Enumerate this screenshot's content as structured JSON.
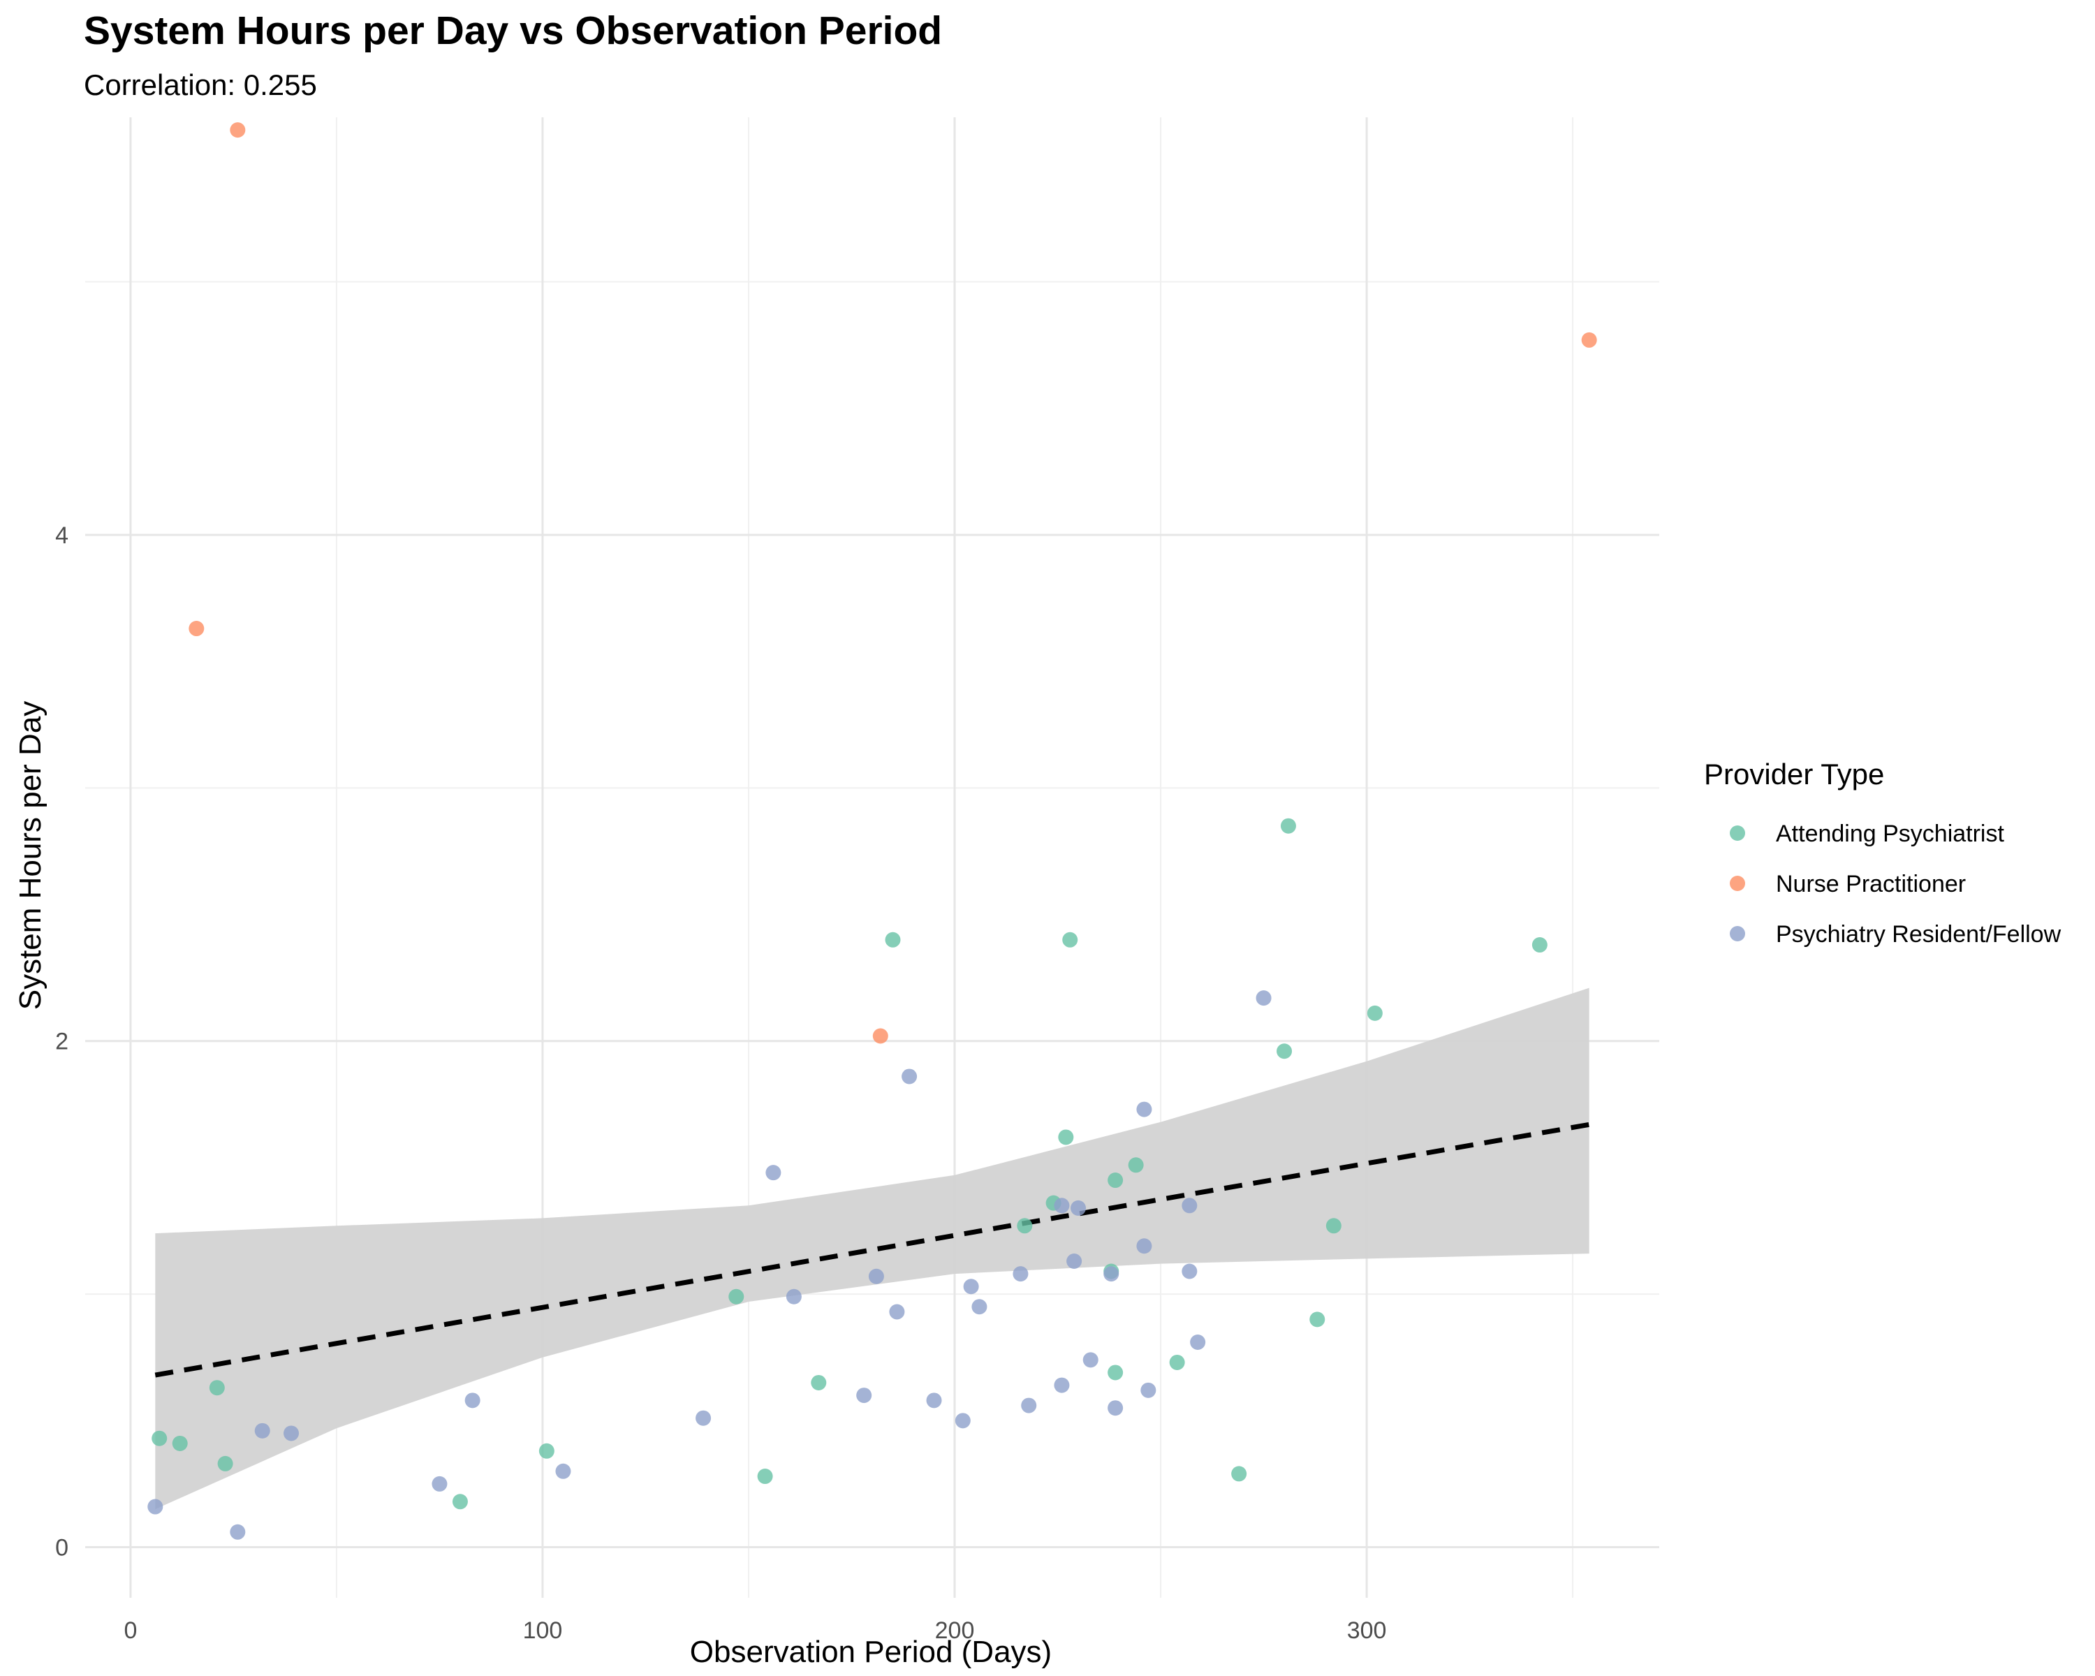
{
  "chart_data": {
    "type": "scatter",
    "title": "System Hours per Day vs Observation Period",
    "subtitle": "Correlation: 0.255",
    "xlabel": "Observation Period (Days)",
    "ylabel": "System Hours per Day",
    "xlim": [
      -11,
      371
    ],
    "ylim": [
      -0.2,
      5.65
    ],
    "x_ticks": [
      0,
      100,
      200,
      300
    ],
    "y_ticks": [
      0,
      2,
      4
    ],
    "x_minor_ticks": [
      50,
      150,
      250,
      350
    ],
    "y_minor_ticks": [
      1,
      3,
      5
    ],
    "grid": true,
    "legend": {
      "title": "Provider Type",
      "position": "right"
    },
    "series": [
      {
        "name": "Attending Psychiatrist",
        "color": "#66c2a5",
        "points": [
          {
            "x": 7,
            "y": 0.43
          },
          {
            "x": 12,
            "y": 0.41
          },
          {
            "x": 21,
            "y": 0.63
          },
          {
            "x": 23,
            "y": 0.33
          },
          {
            "x": 80,
            "y": 0.18
          },
          {
            "x": 101,
            "y": 0.38
          },
          {
            "x": 147,
            "y": 0.99
          },
          {
            "x": 154,
            "y": 0.28
          },
          {
            "x": 167,
            "y": 0.65
          },
          {
            "x": 185,
            "y": 2.4
          },
          {
            "x": 217,
            "y": 1.27
          },
          {
            "x": 224,
            "y": 1.36
          },
          {
            "x": 227,
            "y": 1.62
          },
          {
            "x": 228,
            "y": 2.4
          },
          {
            "x": 238,
            "y": 1.09
          },
          {
            "x": 239,
            "y": 1.45
          },
          {
            "x": 239,
            "y": 0.69
          },
          {
            "x": 244,
            "y": 1.51
          },
          {
            "x": 254,
            "y": 0.73
          },
          {
            "x": 269,
            "y": 0.29
          },
          {
            "x": 280,
            "y": 1.96
          },
          {
            "x": 281,
            "y": 2.85
          },
          {
            "x": 288,
            "y": 0.9
          },
          {
            "x": 292,
            "y": 1.27
          },
          {
            "x": 302,
            "y": 2.11
          },
          {
            "x": 342,
            "y": 2.38
          }
        ]
      },
      {
        "name": "Nurse Practitioner",
        "color": "#fc8d62",
        "points": [
          {
            "x": 16,
            "y": 3.63
          },
          {
            "x": 26,
            "y": 5.6
          },
          {
            "x": 182,
            "y": 2.02
          },
          {
            "x": 354,
            "y": 4.77
          }
        ]
      },
      {
        "name": "Psychiatry Resident/Fellow",
        "color": "#8da0cb",
        "points": [
          {
            "x": 6,
            "y": 0.16
          },
          {
            "x": 26,
            "y": 0.06
          },
          {
            "x": 32,
            "y": 0.46
          },
          {
            "x": 39,
            "y": 0.45
          },
          {
            "x": 75,
            "y": 0.25
          },
          {
            "x": 83,
            "y": 0.58
          },
          {
            "x": 105,
            "y": 0.3
          },
          {
            "x": 139,
            "y": 0.51
          },
          {
            "x": 156,
            "y": 1.48
          },
          {
            "x": 161,
            "y": 0.99
          },
          {
            "x": 178,
            "y": 0.6
          },
          {
            "x": 181,
            "y": 1.07
          },
          {
            "x": 186,
            "y": 0.93
          },
          {
            "x": 189,
            "y": 1.86
          },
          {
            "x": 195,
            "y": 0.58
          },
          {
            "x": 202,
            "y": 0.5
          },
          {
            "x": 204,
            "y": 1.03
          },
          {
            "x": 206,
            "y": 0.95
          },
          {
            "x": 216,
            "y": 1.08
          },
          {
            "x": 218,
            "y": 0.56
          },
          {
            "x": 226,
            "y": 0.64
          },
          {
            "x": 226,
            "y": 1.35
          },
          {
            "x": 229,
            "y": 1.13
          },
          {
            "x": 230,
            "y": 1.34
          },
          {
            "x": 233,
            "y": 0.74
          },
          {
            "x": 238,
            "y": 1.08
          },
          {
            "x": 239,
            "y": 0.55
          },
          {
            "x": 246,
            "y": 1.19
          },
          {
            "x": 246,
            "y": 1.73
          },
          {
            "x": 247,
            "y": 0.62
          },
          {
            "x": 257,
            "y": 1.09
          },
          {
            "x": 257,
            "y": 1.35
          },
          {
            "x": 259,
            "y": 0.81
          },
          {
            "x": 275,
            "y": 2.17
          }
        ]
      }
    ],
    "trend_line": {
      "style": "dashed",
      "color": "#000000",
      "x": [
        6,
        354
      ],
      "y": [
        0.68,
        1.67
      ]
    },
    "confidence_band": {
      "color": "#d3d3d3",
      "x": [
        6,
        50,
        100,
        150,
        200,
        250,
        300,
        354
      ],
      "lower": [
        0.15,
        0.47,
        0.75,
        0.97,
        1.08,
        1.12,
        1.14,
        1.16
      ],
      "upper": [
        1.24,
        1.27,
        1.3,
        1.35,
        1.47,
        1.68,
        1.92,
        2.21
      ]
    }
  }
}
